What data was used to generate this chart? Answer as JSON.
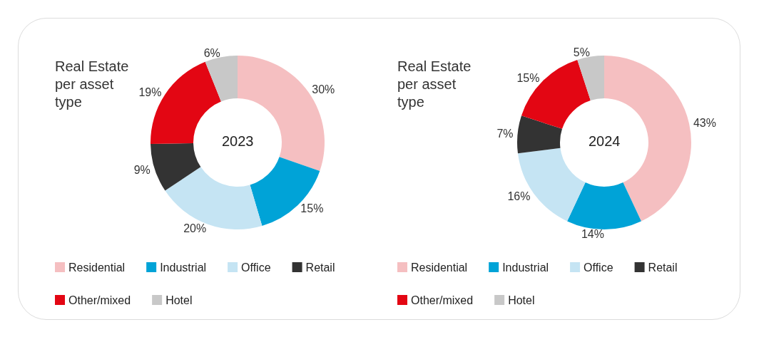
{
  "chart_data": [
    {
      "type": "donut",
      "title": "Real Estate per asset type",
      "annotations": [
        "2023"
      ],
      "categories": [
        "Residential",
        "Industrial",
        "Office",
        "Retail",
        "Other/mixed",
        "Hotel"
      ],
      "values": [
        30,
        15,
        20,
        9,
        19,
        6
      ],
      "value_labels": [
        "30%",
        "15%",
        "20%",
        "9%",
        "19%",
        "6%"
      ],
      "colors": [
        "#f5bfc1",
        "#00a3d7",
        "#c5e4f3",
        "#333333",
        "#e30613",
        "#c8c8c8"
      ],
      "legend": "bottom"
    },
    {
      "type": "donut",
      "title": "Real Estate per asset type",
      "annotations": [
        "2024"
      ],
      "categories": [
        "Residential",
        "Industrial",
        "Office",
        "Retail",
        "Other/mixed",
        "Hotel"
      ],
      "values": [
        43,
        14,
        16,
        7,
        15,
        5
      ],
      "value_labels": [
        "43%",
        "14%",
        "16%",
        "7%",
        "15%",
        "5%"
      ],
      "colors": [
        "#f5bfc1",
        "#00a3d7",
        "#c5e4f3",
        "#333333",
        "#e30613",
        "#c8c8c8"
      ],
      "legend": "bottom"
    }
  ]
}
